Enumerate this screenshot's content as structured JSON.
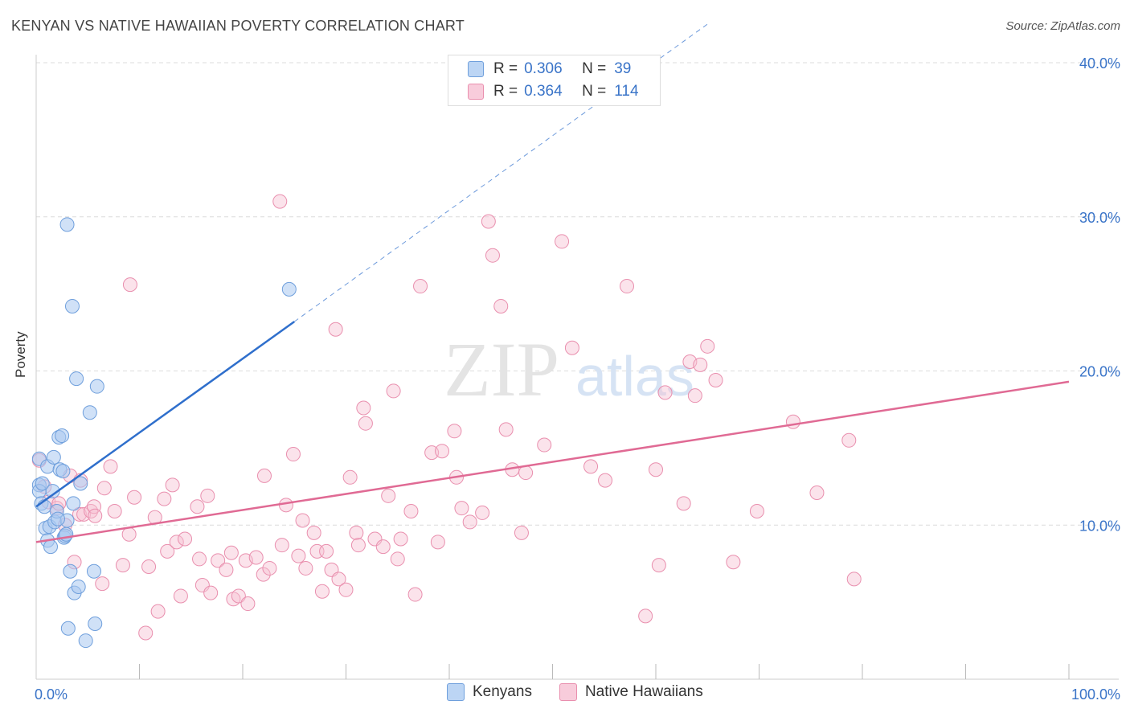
{
  "header": {
    "title": "KENYAN VS NATIVE HAWAIIAN POVERTY CORRELATION CHART",
    "source": "Source: ZipAtlas.com"
  },
  "watermark": {
    "zip": "ZIP",
    "atlas": "atlas"
  },
  "legend": {
    "rows": [
      {
        "r_label": "R =",
        "r_value": "0.306",
        "n_label": "N =",
        "n_value": "39"
      },
      {
        "r_label": "R =",
        "r_value": "0.364",
        "n_label": "N =",
        "n_value": "114"
      }
    ],
    "bottom": [
      "Kenyans",
      "Native Hawaiians"
    ]
  },
  "colors": {
    "kenyan_fill": "#a9c9f0",
    "kenyan_stroke": "#6f9fdc",
    "kenyan_line": "#2f6fcc",
    "hawaiian_fill": "#f6c0d2",
    "hawaiian_stroke": "#e98fae",
    "hawaiian_line": "#e06a94",
    "tick_label": "#3a74c8",
    "grid": "#dcdcdc"
  },
  "chart_data": {
    "type": "scatter",
    "title": "KENYAN VS NATIVE HAWAIIAN POVERTY CORRELATION CHART",
    "xlabel": "",
    "ylabel": "Poverty",
    "xlim": [
      0,
      100
    ],
    "ylim": [
      0,
      40
    ],
    "x_tick_labels": [
      "0.0%",
      "100.0%"
    ],
    "y_ticks": [
      10,
      20,
      30,
      40
    ],
    "y_tick_labels": [
      "10.0%",
      "20.0%",
      "30.0%",
      "40.0%"
    ],
    "grid": true,
    "legend_position": "top-center",
    "series": [
      {
        "name": "Kenyans",
        "r": 0.306,
        "n": 39,
        "trend": {
          "x": [
            0,
            25
          ],
          "y": [
            11.2,
            23.2
          ],
          "extended_to": [
            65,
            42.5
          ]
        },
        "points": [
          [
            0.3,
            14.3
          ],
          [
            0.3,
            12.6
          ],
          [
            0.3,
            12.2
          ],
          [
            0.5,
            11.4
          ],
          [
            0.6,
            12.7
          ],
          [
            0.8,
            11.2
          ],
          [
            0.9,
            9.8
          ],
          [
            1.1,
            9.0
          ],
          [
            1.1,
            13.8
          ],
          [
            1.3,
            9.9
          ],
          [
            1.4,
            8.6
          ],
          [
            1.6,
            12.2
          ],
          [
            1.7,
            14.4
          ],
          [
            1.8,
            10.2
          ],
          [
            2.0,
            10.9
          ],
          [
            2.2,
            15.7
          ],
          [
            2.3,
            13.6
          ],
          [
            2.5,
            15.8
          ],
          [
            2.6,
            13.5
          ],
          [
            2.7,
            9.2
          ],
          [
            2.8,
            9.3
          ],
          [
            2.9,
            9.4
          ],
          [
            3.0,
            29.5
          ],
          [
            3.0,
            10.3
          ],
          [
            3.1,
            3.3
          ],
          [
            3.3,
            7.0
          ],
          [
            3.5,
            24.2
          ],
          [
            3.6,
            11.4
          ],
          [
            3.7,
            5.6
          ],
          [
            3.9,
            19.5
          ],
          [
            4.1,
            6.0
          ],
          [
            4.3,
            12.7
          ],
          [
            4.8,
            2.5
          ],
          [
            5.2,
            17.3
          ],
          [
            5.6,
            7.0
          ],
          [
            5.7,
            3.6
          ],
          [
            5.9,
            19.0
          ],
          [
            24.5,
            25.3
          ],
          [
            2.1,
            10.4
          ]
        ]
      },
      {
        "name": "Native Hawaiians",
        "r": 0.364,
        "n": 114,
        "trend": {
          "x": [
            0,
            100
          ],
          "y": [
            8.9,
            19.3
          ]
        },
        "points": [
          [
            0.3,
            14.2
          ],
          [
            0.8,
            12.5
          ],
          [
            1.2,
            11.5
          ],
          [
            2.0,
            11.1
          ],
          [
            2.2,
            11.4
          ],
          [
            2.8,
            10.0
          ],
          [
            3.3,
            13.2
          ],
          [
            3.7,
            7.6
          ],
          [
            4.2,
            10.7
          ],
          [
            4.3,
            12.9
          ],
          [
            4.6,
            10.7
          ],
          [
            5.3,
            10.9
          ],
          [
            5.6,
            11.2
          ],
          [
            5.7,
            10.6
          ],
          [
            6.4,
            6.2
          ],
          [
            6.6,
            12.4
          ],
          [
            7.2,
            13.8
          ],
          [
            7.6,
            10.9
          ],
          [
            8.4,
            7.4
          ],
          [
            9.0,
            9.4
          ],
          [
            9.1,
            25.6
          ],
          [
            9.5,
            11.8
          ],
          [
            10.6,
            3.0
          ],
          [
            10.9,
            7.3
          ],
          [
            11.5,
            10.5
          ],
          [
            11.8,
            4.4
          ],
          [
            12.4,
            11.7
          ],
          [
            12.7,
            8.3
          ],
          [
            13.2,
            12.6
          ],
          [
            13.6,
            8.9
          ],
          [
            14.0,
            5.4
          ],
          [
            14.4,
            9.1
          ],
          [
            15.6,
            11.2
          ],
          [
            15.8,
            7.8
          ],
          [
            16.1,
            6.1
          ],
          [
            16.6,
            11.9
          ],
          [
            16.9,
            5.6
          ],
          [
            17.6,
            7.7
          ],
          [
            18.4,
            7.1
          ],
          [
            18.9,
            8.2
          ],
          [
            19.1,
            5.2
          ],
          [
            19.6,
            5.4
          ],
          [
            20.3,
            7.7
          ],
          [
            20.5,
            4.9
          ],
          [
            21.3,
            7.9
          ],
          [
            22.0,
            6.8
          ],
          [
            22.1,
            13.2
          ],
          [
            22.6,
            7.2
          ],
          [
            23.6,
            31.0
          ],
          [
            23.8,
            8.7
          ],
          [
            24.2,
            11.3
          ],
          [
            24.9,
            14.6
          ],
          [
            25.4,
            8.0
          ],
          [
            25.8,
            10.3
          ],
          [
            26.1,
            7.2
          ],
          [
            26.9,
            9.5
          ],
          [
            27.2,
            8.3
          ],
          [
            27.7,
            5.7
          ],
          [
            28.1,
            8.3
          ],
          [
            28.6,
            7.1
          ],
          [
            29.0,
            22.7
          ],
          [
            29.3,
            6.5
          ],
          [
            30.0,
            5.8
          ],
          [
            30.4,
            13.1
          ],
          [
            31.0,
            9.5
          ],
          [
            31.2,
            8.7
          ],
          [
            31.7,
            17.6
          ],
          [
            31.9,
            16.6
          ],
          [
            32.8,
            9.1
          ],
          [
            33.6,
            8.6
          ],
          [
            34.1,
            11.9
          ],
          [
            34.6,
            18.7
          ],
          [
            35.0,
            7.8
          ],
          [
            35.3,
            9.1
          ],
          [
            36.3,
            10.9
          ],
          [
            36.7,
            5.5
          ],
          [
            37.2,
            25.5
          ],
          [
            38.3,
            14.7
          ],
          [
            38.9,
            8.9
          ],
          [
            39.3,
            14.8
          ],
          [
            40.5,
            16.1
          ],
          [
            40.7,
            13.1
          ],
          [
            41.2,
            11.1
          ],
          [
            42.0,
            10.2
          ],
          [
            43.2,
            10.8
          ],
          [
            43.8,
            29.7
          ],
          [
            44.2,
            27.5
          ],
          [
            45.0,
            24.2
          ],
          [
            45.5,
            16.2
          ],
          [
            46.1,
            13.6
          ],
          [
            47.0,
            9.5
          ],
          [
            47.4,
            13.4
          ],
          [
            49.2,
            15.2
          ],
          [
            50.9,
            28.4
          ],
          [
            51.9,
            21.5
          ],
          [
            53.7,
            13.8
          ],
          [
            55.1,
            12.9
          ],
          [
            57.2,
            25.5
          ],
          [
            59.0,
            4.1
          ],
          [
            60.0,
            13.6
          ],
          [
            60.3,
            7.4
          ],
          [
            60.9,
            18.6
          ],
          [
            62.7,
            11.4
          ],
          [
            63.3,
            20.6
          ],
          [
            63.8,
            18.4
          ],
          [
            64.3,
            20.4
          ],
          [
            65.0,
            21.6
          ],
          [
            65.8,
            19.4
          ],
          [
            67.5,
            7.6
          ],
          [
            69.8,
            10.9
          ],
          [
            73.3,
            16.7
          ],
          [
            75.6,
            12.1
          ],
          [
            78.7,
            15.5
          ],
          [
            79.2,
            6.5
          ]
        ]
      }
    ],
    "extra_points_note": ""
  }
}
